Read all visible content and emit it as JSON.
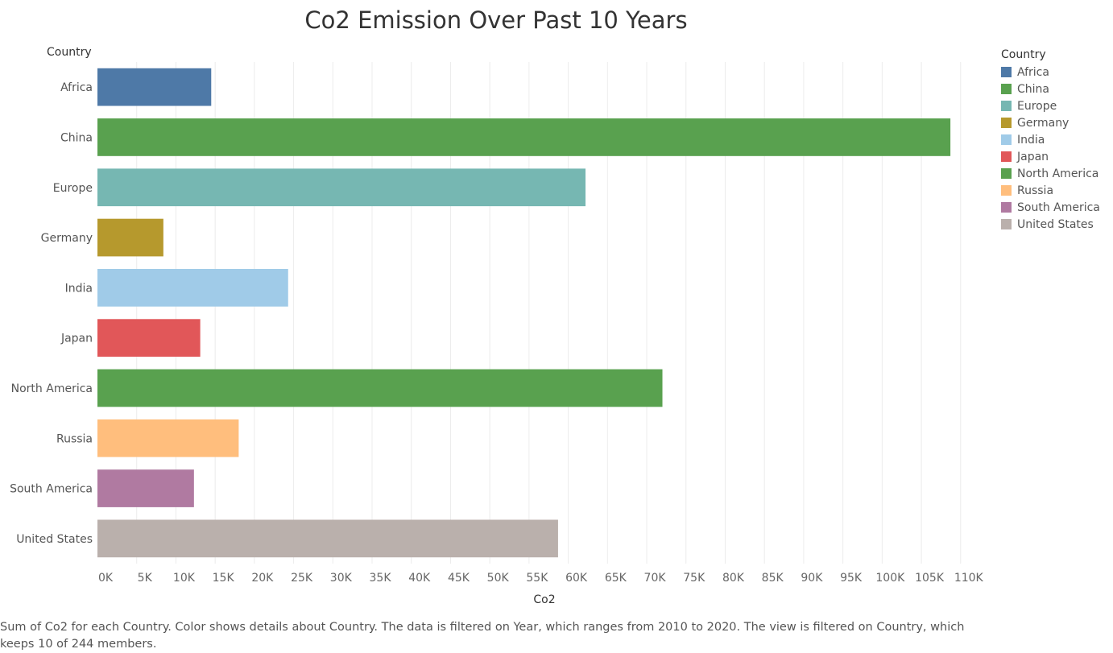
{
  "chart_data": {
    "type": "bar",
    "orientation": "horizontal",
    "title": "Co2 Emission Over Past 10 Years",
    "row_header": "Country",
    "xlabel": "Co2",
    "categories": [
      "Africa",
      "China",
      "Europe",
      "Germany",
      "India",
      "Japan",
      "North America",
      "Russia",
      "South America",
      "United States"
    ],
    "values": [
      14500,
      108700,
      62200,
      8400,
      24300,
      13100,
      72000,
      18000,
      12300,
      58700
    ],
    "colors": [
      "#4e79a7",
      "#59a14f",
      "#76b7b2",
      "#b6992d",
      "#a0cbe8",
      "#e15759",
      "#59a14f",
      "#ffbe7d",
      "#b07aa1",
      "#bab0ac"
    ],
    "xlim": [
      0,
      113000
    ],
    "xticks": [
      0,
      5000,
      10000,
      15000,
      20000,
      25000,
      30000,
      35000,
      40000,
      45000,
      50000,
      55000,
      60000,
      65000,
      70000,
      75000,
      80000,
      85000,
      90000,
      95000,
      100000,
      105000,
      110000
    ],
    "xtick_labels": [
      "0K",
      "5K",
      "10K",
      "15K",
      "20K",
      "25K",
      "30K",
      "35K",
      "40K",
      "45K",
      "50K",
      "55K",
      "60K",
      "65K",
      "70K",
      "75K",
      "80K",
      "85K",
      "90K",
      "95K",
      "100K",
      "105K",
      "110K"
    ],
    "grid": true,
    "legend": {
      "title": "Country",
      "position": "right",
      "entries": [
        "Africa",
        "China",
        "Europe",
        "Germany",
        "India",
        "Japan",
        "North America",
        "Russia",
        "South America",
        "United States"
      ]
    },
    "caption": "Sum of Co2 for each Country.  Color shows details about Country. The data is filtered on Year, which ranges from 2010 to 2020. The view is filtered on Country, which keeps 10 of 244 members."
  }
}
